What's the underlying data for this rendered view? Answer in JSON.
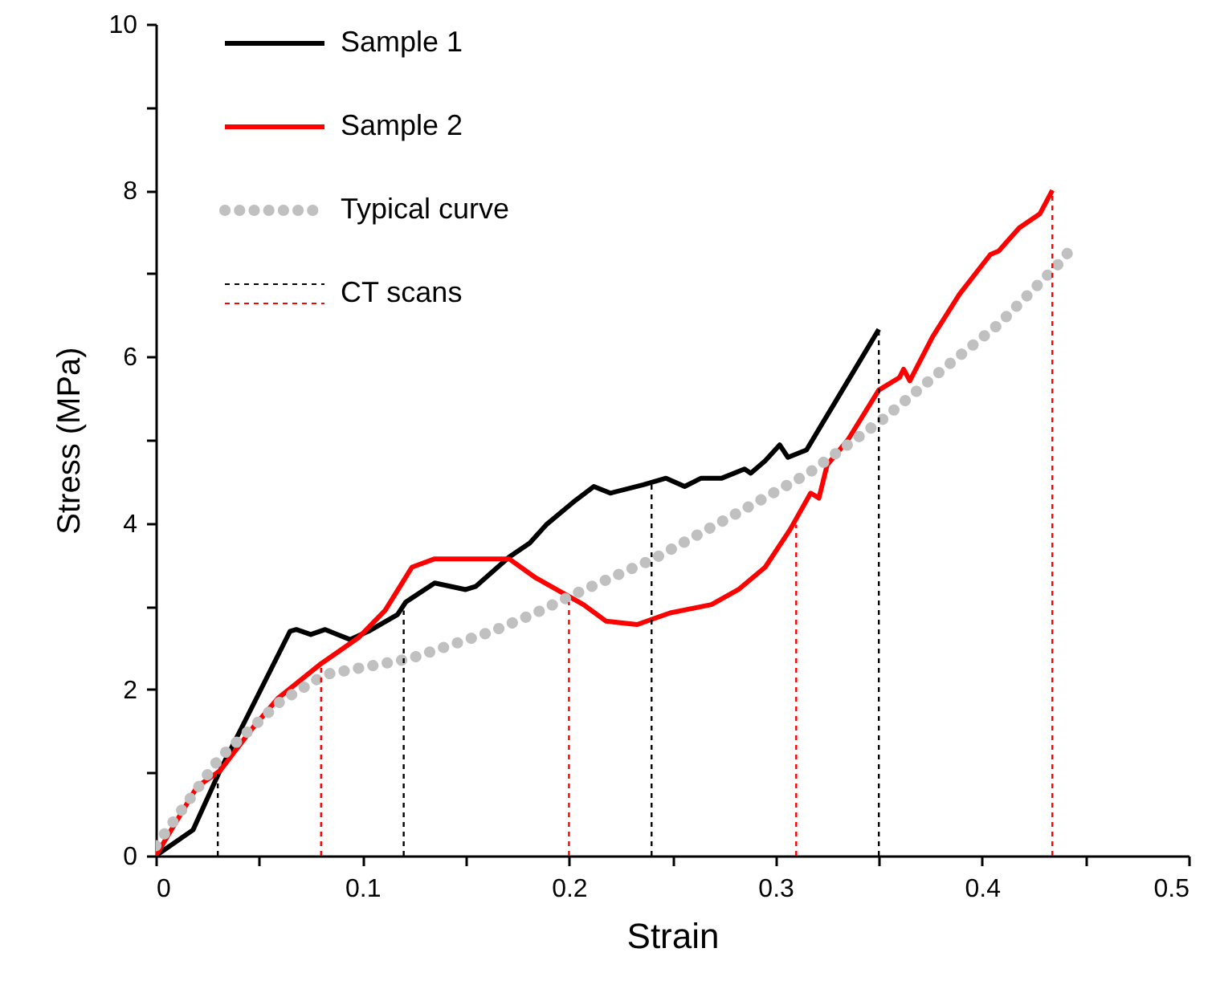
{
  "chart_data": {
    "type": "line",
    "xlabel": "Strain",
    "ylabel": "Stress (MPa)",
    "xlim": [
      0,
      0.5
    ],
    "ylim": [
      0,
      10
    ],
    "xticks": [
      0,
      {
        "value": 0.05,
        "label": null
      },
      0.1,
      {
        "value": 0.15,
        "label": null
      },
      0.2,
      {
        "value": 0.25,
        "label": null
      },
      0.3,
      {
        "value": 0.35,
        "label": null
      },
      0.4,
      {
        "value": 0.45,
        "label": null
      },
      0.5
    ],
    "yticks": [
      0,
      {
        "value": 1,
        "label": null
      },
      2,
      {
        "value": 3,
        "label": null
      },
      4,
      {
        "value": 5,
        "label": null
      },
      6,
      {
        "value": 7,
        "label": null
      },
      8,
      {
        "value": 9,
        "label": null
      },
      10
    ],
    "grid": false,
    "legend": "top left",
    "marker": "none",
    "series": [
      {
        "name": "Sample 1",
        "color": "#000000",
        "line_style": "solid",
        "x": [
          0,
          0.018,
          0.031,
          0.044,
          0.065,
          0.068,
          0.075,
          0.082,
          0.088,
          0.094,
          0.103,
          0.117,
          0.121,
          0.135,
          0.15,
          0.155,
          0.171,
          0.181,
          0.189,
          0.202,
          0.212,
          0.22,
          0.236,
          0.247,
          0.256,
          0.264,
          0.274,
          0.285,
          0.288,
          0.295,
          0.302,
          0.306,
          0.315,
          0.329,
          0.35
        ],
        "values": [
          0,
          0.31,
          1.02,
          1.66,
          2.7,
          2.72,
          2.66,
          2.72,
          2.66,
          2.6,
          2.7,
          2.9,
          3.05,
          3.28,
          3.2,
          3.24,
          3.59,
          3.76,
          3.98,
          4.25,
          4.44,
          4.36,
          4.46,
          4.54,
          4.44,
          4.54,
          4.54,
          4.65,
          4.6,
          4.75,
          4.94,
          4.79,
          4.88,
          5.46,
          6.33
        ]
      },
      {
        "name": "Sample 2",
        "color": "#ff0000",
        "line_style": "solid",
        "x": [
          0,
          0.02,
          0.031,
          0.047,
          0.059,
          0.08,
          0.098,
          0.111,
          0.124,
          0.135,
          0.158,
          0.171,
          0.184,
          0.207,
          0.218,
          0.233,
          0.249,
          0.269,
          0.282,
          0.295,
          0.307,
          0.317,
          0.321,
          0.325,
          0.335,
          0.35,
          0.36,
          0.362,
          0.365,
          0.376,
          0.389,
          0.404,
          0.408,
          0.418,
          0.428,
          0.434
        ],
        "values": [
          0,
          0.83,
          1.02,
          1.54,
          1.89,
          2.31,
          2.62,
          2.95,
          3.47,
          3.57,
          3.57,
          3.57,
          3.34,
          3.02,
          2.82,
          2.78,
          2.92,
          3.02,
          3.2,
          3.47,
          3.92,
          4.36,
          4.3,
          4.7,
          5.0,
          5.6,
          5.75,
          5.85,
          5.71,
          6.24,
          6.75,
          7.23,
          7.27,
          7.55,
          7.72,
          8.0
        ]
      },
      {
        "name": "Typical curve",
        "color": "#c0c0c0",
        "line_style": "dotted",
        "x": [
          0,
          0.031,
          0.06,
          0.082,
          0.123,
          0.163,
          0.184,
          0.203,
          0.241,
          0.28,
          0.316,
          0.351,
          0.383,
          0.408,
          0.438,
          0.444
        ],
        "values": [
          0.12,
          1.18,
          1.85,
          2.18,
          2.37,
          2.7,
          2.92,
          3.15,
          3.57,
          4.1,
          4.6,
          5.23,
          5.89,
          6.39,
          7.14,
          7.33
        ]
      },
      {
        "name": "CT scans",
        "color": "#000000",
        "line_style": "dashed",
        "x": [
          0.03,
          0.03,
          null,
          0.12,
          0.12,
          null,
          0.24,
          0.24,
          null,
          0.35,
          0.35
        ],
        "values": [
          0,
          1.0,
          null,
          0,
          2.95,
          null,
          0,
          4.5,
          null,
          0,
          6.33
        ]
      },
      {
        "color": "#ff0000",
        "line_style": "dashed",
        "x": [
          0.08,
          0.08,
          null,
          0.2,
          0.2,
          null,
          0.31,
          0.31,
          null,
          0.434,
          0.434
        ],
        "values": [
          0,
          2.31,
          null,
          0,
          3.05,
          null,
          0,
          3.98,
          null,
          0,
          8.0
        ]
      }
    ]
  }
}
